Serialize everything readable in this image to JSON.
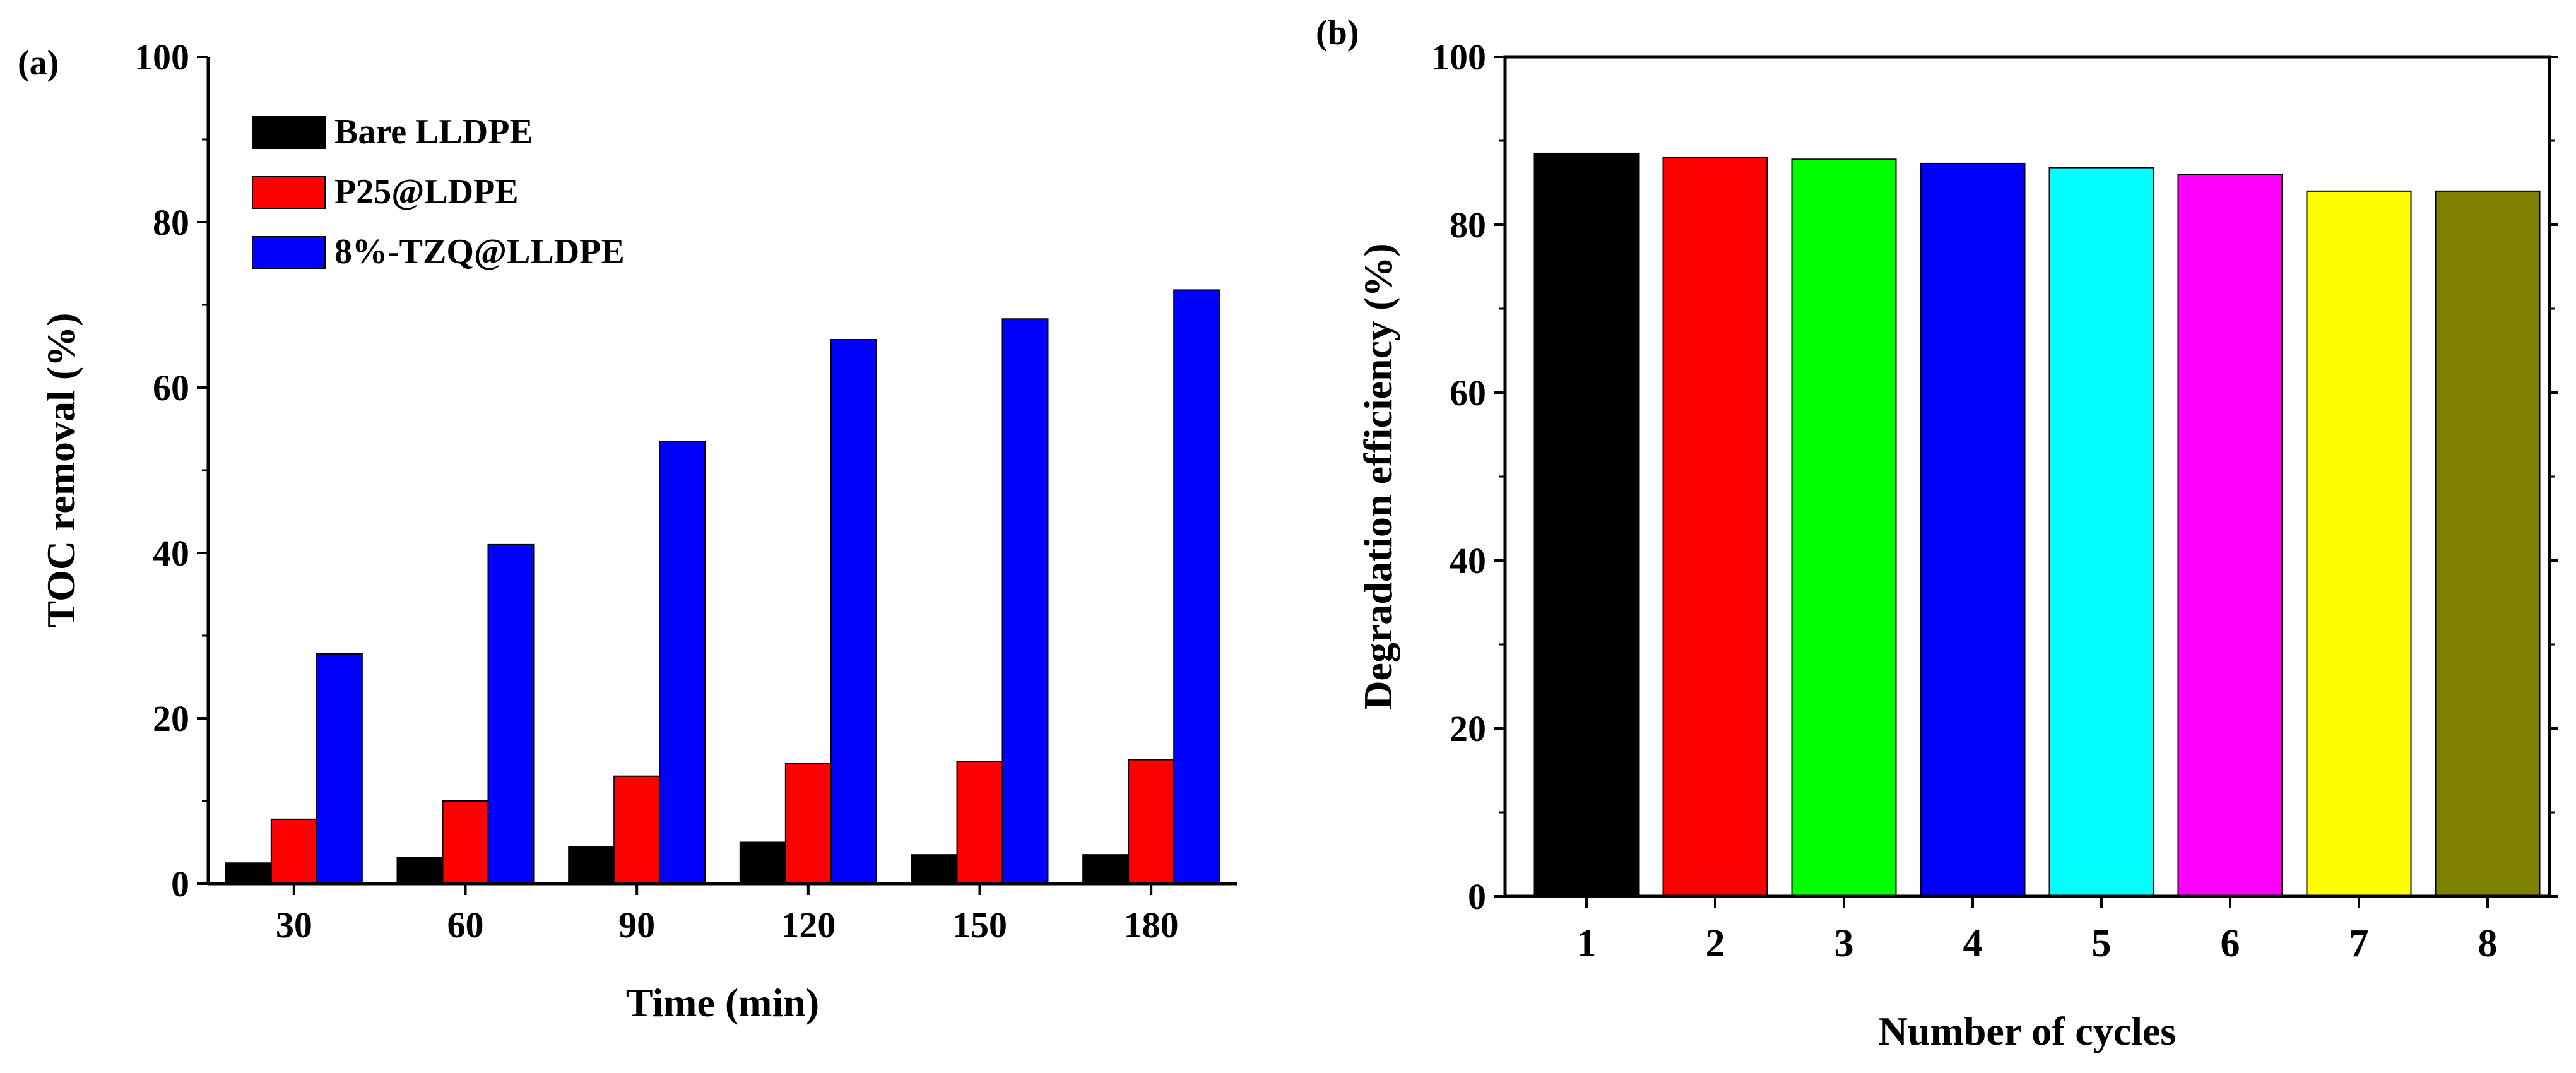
{
  "chart_data": [
    {
      "panel_label": "(a)",
      "type": "bar",
      "title": "",
      "xlabel": "Time (min)",
      "ylabel": "TOC removal (%)",
      "ylim": [
        0,
        100
      ],
      "yticks": [
        0,
        20,
        40,
        60,
        80,
        100
      ],
      "categories": [
        "30",
        "60",
        "90",
        "120",
        "150",
        "180"
      ],
      "legend_position": "top-left",
      "series": [
        {
          "name": "Bare LLDPE",
          "color": "#000000",
          "values": [
            2.5,
            3.2,
            4.5,
            5.0,
            3.5,
            3.5
          ]
        },
        {
          "name": "P25@LDPE",
          "color": "#ff0000",
          "values": [
            7.8,
            10.0,
            13.0,
            14.5,
            14.8,
            15.0
          ]
        },
        {
          "name": "8%-TZQ@LLDPE",
          "color": "#0000ff",
          "values": [
            27.8,
            41.0,
            53.5,
            65.8,
            68.3,
            71.8
          ]
        }
      ]
    },
    {
      "panel_label": "(b)",
      "type": "bar",
      "title": "",
      "xlabel": "Number of cycles",
      "ylabel": "Degradation efficiency (%)",
      "ylim": [
        0,
        100
      ],
      "yticks": [
        0,
        20,
        40,
        60,
        80,
        100
      ],
      "categories": [
        "1",
        "2",
        "3",
        "4",
        "5",
        "6",
        "7",
        "8"
      ],
      "values": [
        88.5,
        88.0,
        87.8,
        87.3,
        86.8,
        86.0,
        84.0,
        84.0
      ],
      "colors": [
        "#000000",
        "#ff0000",
        "#00ff00",
        "#0000ff",
        "#00ffff",
        "#ff00ff",
        "#ffff00",
        "#808000"
      ]
    }
  ]
}
